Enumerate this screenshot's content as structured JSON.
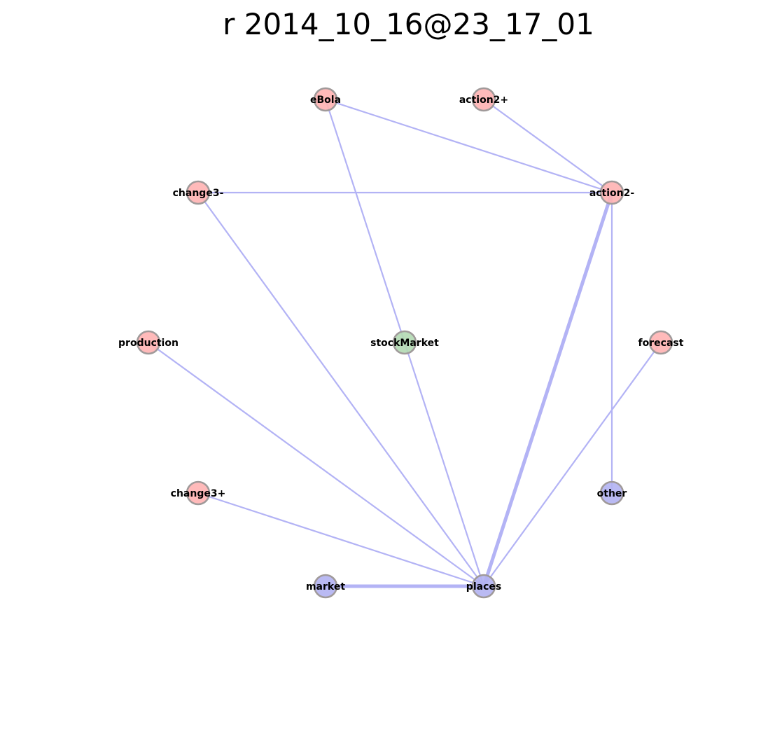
{
  "title": "r 2014_10_16@23_17_01",
  "colors": {
    "red_node": "#ffb3b3",
    "green_node": "#b3d9b3",
    "blue_node": "#b3b3f2",
    "node_stroke": "#a09a9a",
    "edge": "#b3b3f5"
  },
  "nodes": [
    {
      "id": "eBola",
      "label": "eBola",
      "group": "red"
    },
    {
      "id": "action2+",
      "label": "action2+",
      "group": "red"
    },
    {
      "id": "change3-",
      "label": "change3-",
      "group": "red"
    },
    {
      "id": "action2-",
      "label": "action2-",
      "group": "red"
    },
    {
      "id": "production",
      "label": "production",
      "group": "red"
    },
    {
      "id": "stockMarket",
      "label": "stockMarket",
      "group": "green"
    },
    {
      "id": "forecast",
      "label": "forecast",
      "group": "red"
    },
    {
      "id": "change3+",
      "label": "change3+",
      "group": "red"
    },
    {
      "id": "other",
      "label": "other",
      "group": "blue"
    },
    {
      "id": "market",
      "label": "market",
      "group": "blue"
    },
    {
      "id": "places",
      "label": "places",
      "group": "blue"
    }
  ],
  "edges": [
    {
      "source": "eBola",
      "target": "action2-",
      "weight": 1
    },
    {
      "source": "eBola",
      "target": "stockMarket",
      "weight": 1
    },
    {
      "source": "action2+",
      "target": "action2-",
      "weight": 1
    },
    {
      "source": "change3-",
      "target": "action2-",
      "weight": 1
    },
    {
      "source": "change3-",
      "target": "places",
      "weight": 1
    },
    {
      "source": "action2-",
      "target": "places",
      "weight": 3
    },
    {
      "source": "action2-",
      "target": "other",
      "weight": 1
    },
    {
      "source": "production",
      "target": "places",
      "weight": 1
    },
    {
      "source": "stockMarket",
      "target": "places",
      "weight": 1
    },
    {
      "source": "forecast",
      "target": "places",
      "weight": 1
    },
    {
      "source": "change3+",
      "target": "places",
      "weight": 1
    },
    {
      "source": "market",
      "target": "places",
      "weight": 3
    }
  ]
}
